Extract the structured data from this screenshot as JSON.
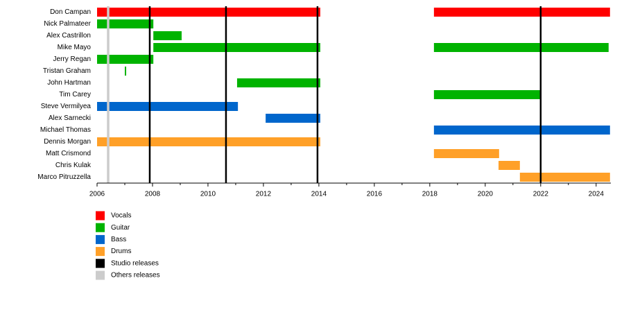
{
  "chart_data": {
    "type": "timeline",
    "categories": [
      "Don Campan",
      "Nick Palmateer",
      "Alex Castrillon",
      "Mike Mayo",
      "Jerry Regan",
      "Tristan Graham",
      "John Hartman",
      "Tim Carey",
      "Steve Vermilyea",
      "Alex Sarnecki",
      "Michael Thomas",
      "Dennis Morgan",
      "Matt Crismond",
      "Chris Kulak",
      "Marco Pitruzzella"
    ],
    "series": [
      {
        "name": "Vocals",
        "color": "#ff0000",
        "bars": [
          {
            "member": "Don Campan",
            "start": 2006,
            "end": 2014.05
          },
          {
            "member": "Don Campan",
            "start": 2018.15,
            "end": 2024.5
          }
        ]
      },
      {
        "name": "Guitar",
        "color": "#00b300",
        "bars": [
          {
            "member": "Nick Palmateer",
            "start": 2006,
            "end": 2008.03
          },
          {
            "member": "Alex Castrillon",
            "start": 2008.03,
            "end": 2009.05
          },
          {
            "member": "Mike Mayo",
            "start": 2008.03,
            "end": 2014.05
          },
          {
            "member": "Mike Mayo",
            "start": 2018.15,
            "end": 2024.45
          },
          {
            "member": "Jerry Regan",
            "start": 2006,
            "end": 2008.03
          },
          {
            "member": "Tristan Graham",
            "start": 2007,
            "end": 2007.05
          },
          {
            "member": "John Hartman",
            "start": 2011.05,
            "end": 2014.05
          },
          {
            "member": "Tim Carey",
            "start": 2018.15,
            "end": 2022
          }
        ]
      },
      {
        "name": "Bass",
        "color": "#0066cc",
        "bars": [
          {
            "member": "Steve Vermilyea",
            "start": 2006,
            "end": 2011.08
          },
          {
            "member": "Alex Sarnecki",
            "start": 2012.08,
            "end": 2014.05
          },
          {
            "member": "Michael Thomas",
            "start": 2018.15,
            "end": 2024.5
          }
        ]
      },
      {
        "name": "Drums",
        "color": "#ffa028",
        "bars": [
          {
            "member": "Dennis Morgan",
            "start": 2006,
            "end": 2014.05
          },
          {
            "member": "Matt Crismond",
            "start": 2018.15,
            "end": 2020.5
          },
          {
            "member": "Chris Kulak",
            "start": 2020.48,
            "end": 2021.25
          },
          {
            "member": "Marco Pitruzzella",
            "start": 2021.25,
            "end": 2024.5
          }
        ]
      }
    ],
    "events": [
      {
        "name": "Studio releases",
        "color": "#000000",
        "x": [
          2007.9,
          2010.65,
          2013.95,
          2022
        ]
      },
      {
        "name": "Others releases",
        "color": "#cccccc",
        "x": [
          2006.4
        ]
      }
    ],
    "xlim": [
      2006,
      2024.53
    ],
    "xticks": [
      2006,
      2008,
      2010,
      2012,
      2014,
      2016,
      2018,
      2020,
      2022,
      2024
    ],
    "xminorticks": [
      2007,
      2009,
      2011,
      2013,
      2015,
      2017,
      2019,
      2021,
      2023
    ]
  }
}
